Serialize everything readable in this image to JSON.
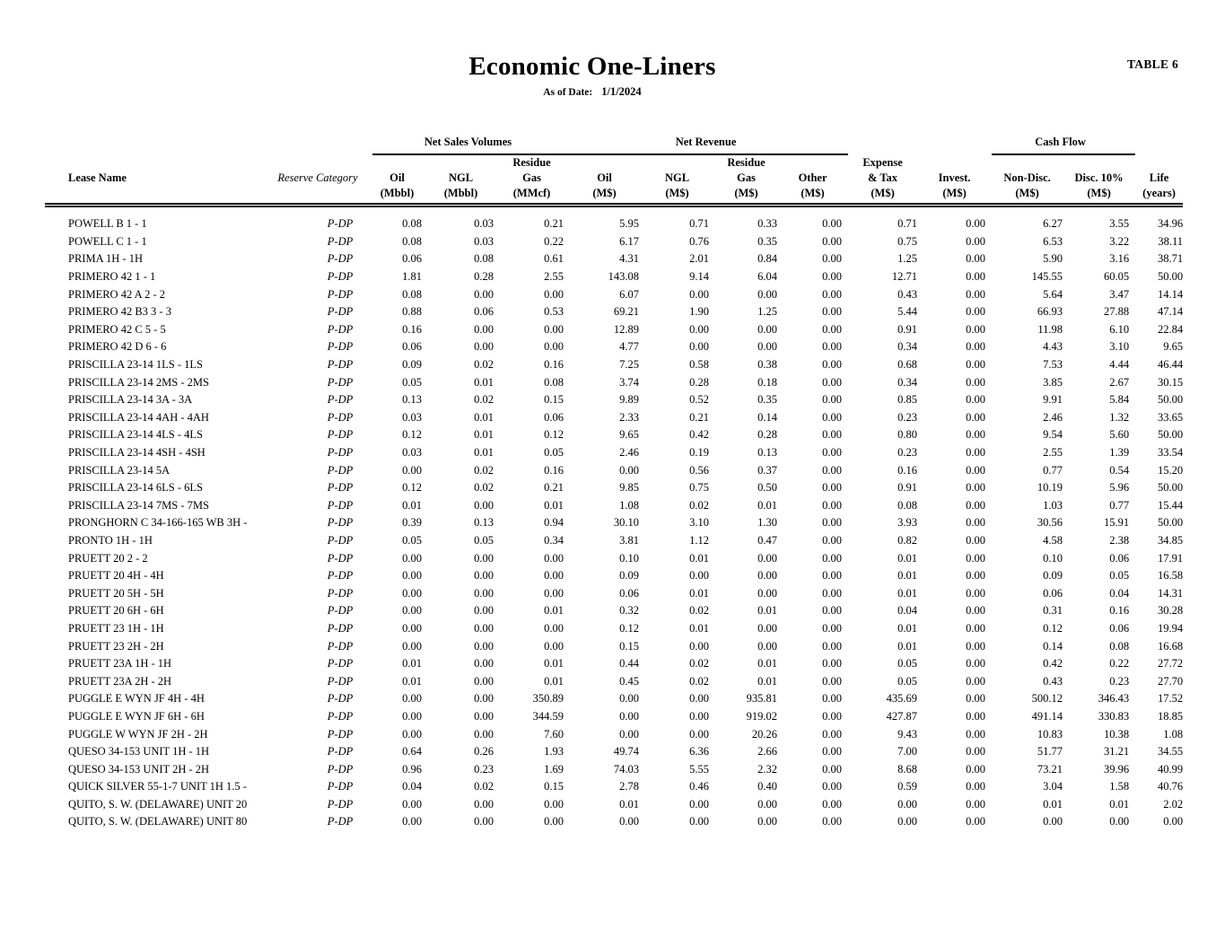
{
  "page": {
    "table_label": "TABLE 6",
    "title": "Economic One-Liners",
    "as_of_label": "As of Date:",
    "as_of_date": "1/1/2024"
  },
  "table": {
    "groups": {
      "net_sales_volumes": "Net Sales Volumes",
      "net_revenue": "Net Revenue",
      "cash_flow": "Cash Flow"
    },
    "columns": {
      "lease_name": "Lease Name",
      "reserve_category": "Reserve Category",
      "oil_vol": [
        "Oil",
        "(Mbbl)"
      ],
      "ngl_vol": [
        "NGL",
        "(Mbbl)"
      ],
      "residue_gas_vol": [
        "Residue",
        "Gas",
        "(MMcf)"
      ],
      "oil_rev": [
        "Oil",
        "(M$)"
      ],
      "ngl_rev": [
        "NGL",
        "(M$)"
      ],
      "residue_gas_rev": [
        "Residue",
        "Gas",
        "(M$)"
      ],
      "other_rev": [
        "Other",
        "(M$)"
      ],
      "expense_tax": [
        "Expense",
        "& Tax",
        "(M$)"
      ],
      "invest": [
        "Invest.",
        "(M$)"
      ],
      "non_disc": [
        "Non-Disc.",
        "(M$)"
      ],
      "disc_10": [
        "Disc. 10%",
        "(M$)"
      ],
      "life": [
        "Life",
        "(years)"
      ]
    },
    "rows": [
      [
        "POWELL B 1 - 1",
        "P-DP",
        "0.08",
        "0.03",
        "0.21",
        "5.95",
        "0.71",
        "0.33",
        "0.00",
        "0.71",
        "0.00",
        "6.27",
        "3.55",
        "34.96"
      ],
      [
        "POWELL C 1 - 1",
        "P-DP",
        "0.08",
        "0.03",
        "0.22",
        "6.17",
        "0.76",
        "0.35",
        "0.00",
        "0.75",
        "0.00",
        "6.53",
        "3.22",
        "38.11"
      ],
      [
        "PRIMA 1H - 1H",
        "P-DP",
        "0.06",
        "0.08",
        "0.61",
        "4.31",
        "2.01",
        "0.84",
        "0.00",
        "1.25",
        "0.00",
        "5.90",
        "3.16",
        "38.71"
      ],
      [
        "PRIMERO 42 1 - 1",
        "P-DP",
        "1.81",
        "0.28",
        "2.55",
        "143.08",
        "9.14",
        "6.04",
        "0.00",
        "12.71",
        "0.00",
        "145.55",
        "60.05",
        "50.00"
      ],
      [
        "PRIMERO 42 A 2 - 2",
        "P-DP",
        "0.08",
        "0.00",
        "0.00",
        "6.07",
        "0.00",
        "0.00",
        "0.00",
        "0.43",
        "0.00",
        "5.64",
        "3.47",
        "14.14"
      ],
      [
        "PRIMERO 42 B3 3 - 3",
        "P-DP",
        "0.88",
        "0.06",
        "0.53",
        "69.21",
        "1.90",
        "1.25",
        "0.00",
        "5.44",
        "0.00",
        "66.93",
        "27.88",
        "47.14"
      ],
      [
        "PRIMERO 42 C 5 - 5",
        "P-DP",
        "0.16",
        "0.00",
        "0.00",
        "12.89",
        "0.00",
        "0.00",
        "0.00",
        "0.91",
        "0.00",
        "11.98",
        "6.10",
        "22.84"
      ],
      [
        "PRIMERO 42 D 6 - 6",
        "P-DP",
        "0.06",
        "0.00",
        "0.00",
        "4.77",
        "0.00",
        "0.00",
        "0.00",
        "0.34",
        "0.00",
        "4.43",
        "3.10",
        "9.65"
      ],
      [
        "PRISCILLA 23-14 1LS - 1LS",
        "P-DP",
        "0.09",
        "0.02",
        "0.16",
        "7.25",
        "0.58",
        "0.38",
        "0.00",
        "0.68",
        "0.00",
        "7.53",
        "4.44",
        "46.44"
      ],
      [
        "PRISCILLA 23-14 2MS - 2MS",
        "P-DP",
        "0.05",
        "0.01",
        "0.08",
        "3.74",
        "0.28",
        "0.18",
        "0.00",
        "0.34",
        "0.00",
        "3.85",
        "2.67",
        "30.15"
      ],
      [
        "PRISCILLA 23-14 3A - 3A",
        "P-DP",
        "0.13",
        "0.02",
        "0.15",
        "9.89",
        "0.52",
        "0.35",
        "0.00",
        "0.85",
        "0.00",
        "9.91",
        "5.84",
        "50.00"
      ],
      [
        "PRISCILLA 23-14 4AH - 4AH",
        "P-DP",
        "0.03",
        "0.01",
        "0.06",
        "2.33",
        "0.21",
        "0.14",
        "0.00",
        "0.23",
        "0.00",
        "2.46",
        "1.32",
        "33.65"
      ],
      [
        "PRISCILLA 23-14 4LS - 4LS",
        "P-DP",
        "0.12",
        "0.01",
        "0.12",
        "9.65",
        "0.42",
        "0.28",
        "0.00",
        "0.80",
        "0.00",
        "9.54",
        "5.60",
        "50.00"
      ],
      [
        "PRISCILLA 23-14 4SH - 4SH",
        "P-DP",
        "0.03",
        "0.01",
        "0.05",
        "2.46",
        "0.19",
        "0.13",
        "0.00",
        "0.23",
        "0.00",
        "2.55",
        "1.39",
        "33.54"
      ],
      [
        "PRISCILLA 23-14 5A",
        "P-DP",
        "0.00",
        "0.02",
        "0.16",
        "0.00",
        "0.56",
        "0.37",
        "0.00",
        "0.16",
        "0.00",
        "0.77",
        "0.54",
        "15.20"
      ],
      [
        "PRISCILLA 23-14 6LS - 6LS",
        "P-DP",
        "0.12",
        "0.02",
        "0.21",
        "9.85",
        "0.75",
        "0.50",
        "0.00",
        "0.91",
        "0.00",
        "10.19",
        "5.96",
        "50.00"
      ],
      [
        "PRISCILLA 23-14 7MS - 7MS",
        "P-DP",
        "0.01",
        "0.00",
        "0.01",
        "1.08",
        "0.02",
        "0.01",
        "0.00",
        "0.08",
        "0.00",
        "1.03",
        "0.77",
        "15.44"
      ],
      [
        "PRONGHORN C 34-166-165 WB 3H -",
        "P-DP",
        "0.39",
        "0.13",
        "0.94",
        "30.10",
        "3.10",
        "1.30",
        "0.00",
        "3.93",
        "0.00",
        "30.56",
        "15.91",
        "50.00"
      ],
      [
        "PRONTO 1H - 1H",
        "P-DP",
        "0.05",
        "0.05",
        "0.34",
        "3.81",
        "1.12",
        "0.47",
        "0.00",
        "0.82",
        "0.00",
        "4.58",
        "2.38",
        "34.85"
      ],
      [
        "PRUETT 20 2 - 2",
        "P-DP",
        "0.00",
        "0.00",
        "0.00",
        "0.10",
        "0.01",
        "0.00",
        "0.00",
        "0.01",
        "0.00",
        "0.10",
        "0.06",
        "17.91"
      ],
      [
        "PRUETT 20 4H - 4H",
        "P-DP",
        "0.00",
        "0.00",
        "0.00",
        "0.09",
        "0.00",
        "0.00",
        "0.00",
        "0.01",
        "0.00",
        "0.09",
        "0.05",
        "16.58"
      ],
      [
        "PRUETT 20 5H - 5H",
        "P-DP",
        "0.00",
        "0.00",
        "0.00",
        "0.06",
        "0.01",
        "0.00",
        "0.00",
        "0.01",
        "0.00",
        "0.06",
        "0.04",
        "14.31"
      ],
      [
        "PRUETT 20 6H - 6H",
        "P-DP",
        "0.00",
        "0.00",
        "0.01",
        "0.32",
        "0.02",
        "0.01",
        "0.00",
        "0.04",
        "0.00",
        "0.31",
        "0.16",
        "30.28"
      ],
      [
        "PRUETT 23 1H - 1H",
        "P-DP",
        "0.00",
        "0.00",
        "0.00",
        "0.12",
        "0.01",
        "0.00",
        "0.00",
        "0.01",
        "0.00",
        "0.12",
        "0.06",
        "19.94"
      ],
      [
        "PRUETT 23 2H - 2H",
        "P-DP",
        "0.00",
        "0.00",
        "0.00",
        "0.15",
        "0.00",
        "0.00",
        "0.00",
        "0.01",
        "0.00",
        "0.14",
        "0.08",
        "16.68"
      ],
      [
        "PRUETT 23A 1H - 1H",
        "P-DP",
        "0.01",
        "0.00",
        "0.01",
        "0.44",
        "0.02",
        "0.01",
        "0.00",
        "0.05",
        "0.00",
        "0.42",
        "0.22",
        "27.72"
      ],
      [
        "PRUETT 23A 2H - 2H",
        "P-DP",
        "0.01",
        "0.00",
        "0.01",
        "0.45",
        "0.02",
        "0.01",
        "0.00",
        "0.05",
        "0.00",
        "0.43",
        "0.23",
        "27.70"
      ],
      [
        "PUGGLE E WYN JF 4H - 4H",
        "P-DP",
        "0.00",
        "0.00",
        "350.89",
        "0.00",
        "0.00",
        "935.81",
        "0.00",
        "435.69",
        "0.00",
        "500.12",
        "346.43",
        "17.52"
      ],
      [
        "PUGGLE E WYN JF 6H - 6H",
        "P-DP",
        "0.00",
        "0.00",
        "344.59",
        "0.00",
        "0.00",
        "919.02",
        "0.00",
        "427.87",
        "0.00",
        "491.14",
        "330.83",
        "18.85"
      ],
      [
        "PUGGLE W WYN JF 2H - 2H",
        "P-DP",
        "0.00",
        "0.00",
        "7.60",
        "0.00",
        "0.00",
        "20.26",
        "0.00",
        "9.43",
        "0.00",
        "10.83",
        "10.38",
        "1.08"
      ],
      [
        "QUESO 34-153 UNIT 1H - 1H",
        "P-DP",
        "0.64",
        "0.26",
        "1.93",
        "49.74",
        "6.36",
        "2.66",
        "0.00",
        "7.00",
        "0.00",
        "51.77",
        "31.21",
        "34.55"
      ],
      [
        "QUESO 34-153 UNIT 2H - 2H",
        "P-DP",
        "0.96",
        "0.23",
        "1.69",
        "74.03",
        "5.55",
        "2.32",
        "0.00",
        "8.68",
        "0.00",
        "73.21",
        "39.96",
        "40.99"
      ],
      [
        "QUICK SILVER 55-1-7 UNIT 1H 1.5 -",
        "P-DP",
        "0.04",
        "0.02",
        "0.15",
        "2.78",
        "0.46",
        "0.40",
        "0.00",
        "0.59",
        "0.00",
        "3.04",
        "1.58",
        "40.76"
      ],
      [
        "QUITO, S. W. (DELAWARE) UNIT 20",
        "P-DP",
        "0.00",
        "0.00",
        "0.00",
        "0.01",
        "0.00",
        "0.00",
        "0.00",
        "0.00",
        "0.00",
        "0.01",
        "0.01",
        "2.02"
      ],
      [
        "QUITO, S. W. (DELAWARE) UNIT 80",
        "P-DP",
        "0.00",
        "0.00",
        "0.00",
        "0.00",
        "0.00",
        "0.00",
        "0.00",
        "0.00",
        "0.00",
        "0.00",
        "0.00",
        "0.00"
      ]
    ]
  }
}
